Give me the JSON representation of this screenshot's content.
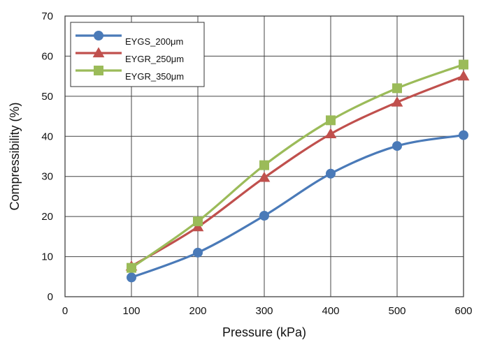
{
  "chart_data": {
    "type": "line",
    "title": "",
    "xlabel": "Pressure (kPa)",
    "ylabel": "Compressibility (%)",
    "xlim": [
      0,
      600
    ],
    "ylim": [
      0,
      70
    ],
    "x_ticks": [
      0,
      100,
      200,
      300,
      400,
      500,
      600
    ],
    "y_ticks": [
      0,
      10,
      20,
      30,
      40,
      50,
      60,
      70
    ],
    "grid": true,
    "legend_position": "top-left",
    "series": [
      {
        "name": "EYGS_200μm",
        "color": "#4a7ab8",
        "marker": "circle",
        "x": [
          100,
          200,
          300,
          400,
          500,
          600
        ],
        "y": [
          4.8,
          11.0,
          20.2,
          30.7,
          37.6,
          40.3
        ]
      },
      {
        "name": "EYGR_250μm",
        "color": "#c0504d",
        "marker": "triangle",
        "x": [
          100,
          200,
          300,
          400,
          500,
          600
        ],
        "y": [
          7.6,
          17.4,
          29.7,
          40.6,
          48.5,
          55.0
        ]
      },
      {
        "name": "EYGR_350μm",
        "color": "#9bbb59",
        "marker": "square",
        "x": [
          100,
          200,
          300,
          400,
          500,
          600
        ],
        "y": [
          7.2,
          18.8,
          32.8,
          44.0,
          52.0,
          57.9
        ]
      }
    ]
  }
}
